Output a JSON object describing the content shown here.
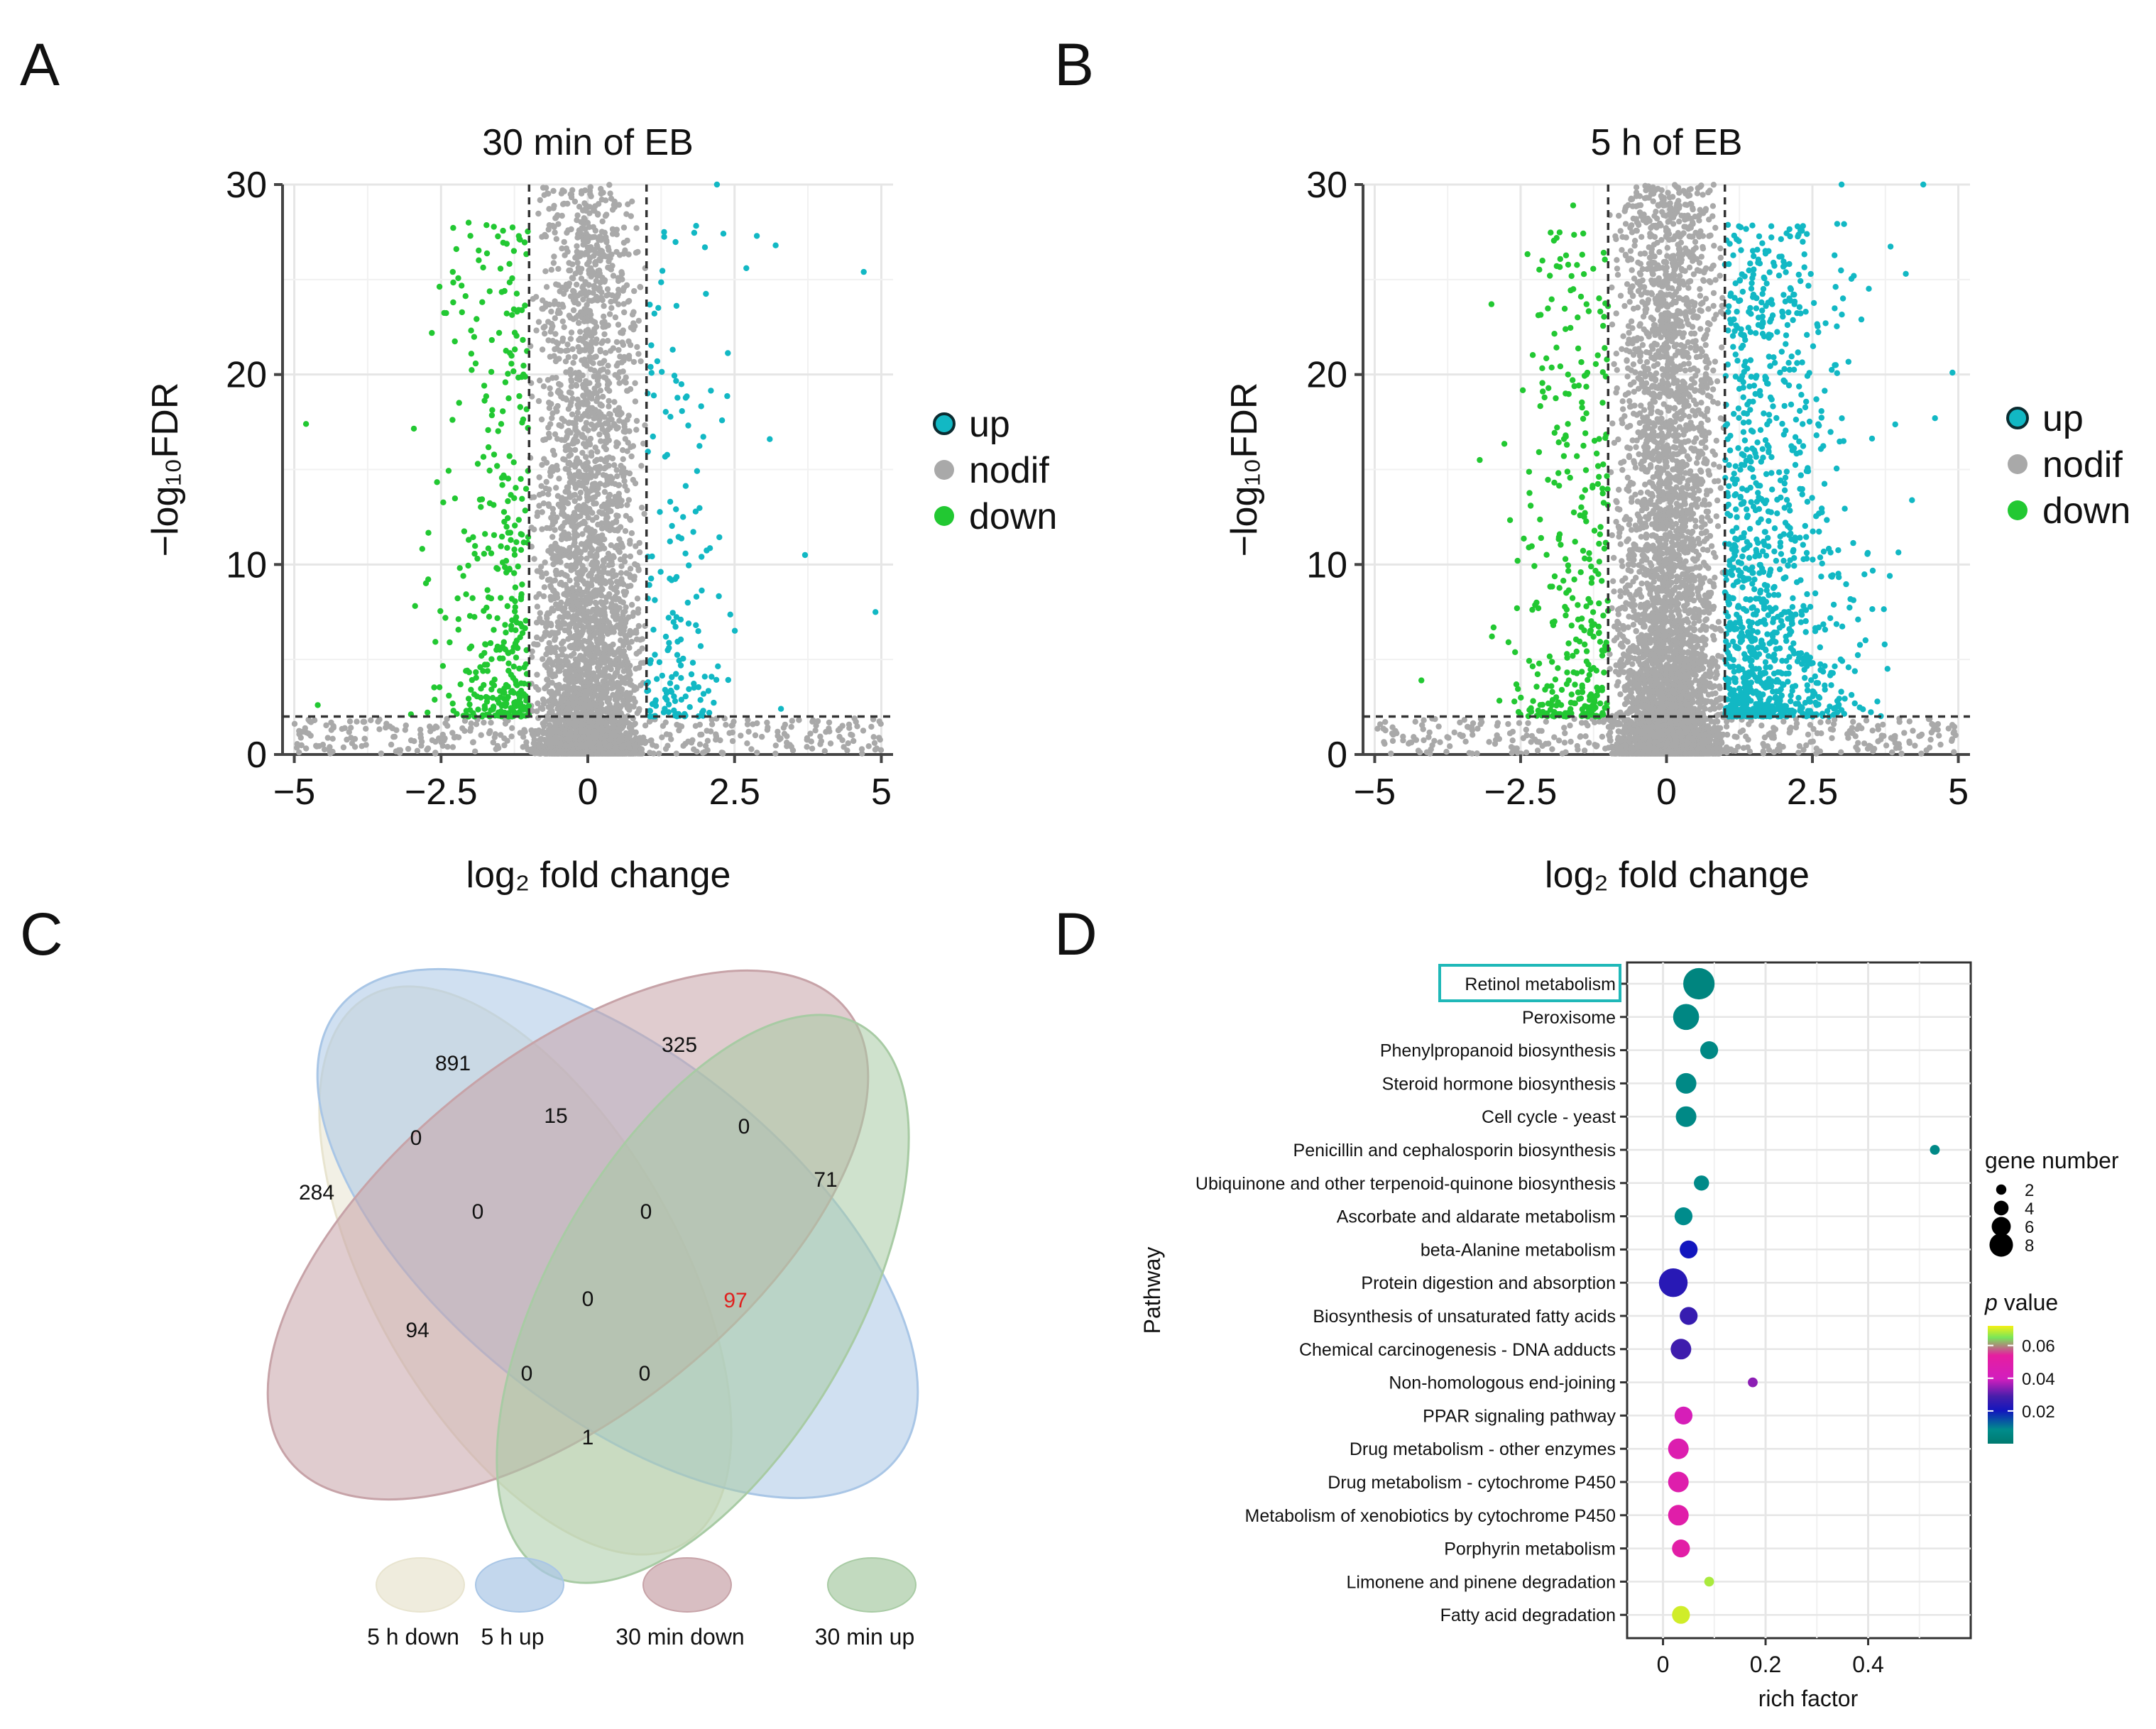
{
  "panels": {
    "a": {
      "letter": "A"
    },
    "b": {
      "letter": "B"
    },
    "c": {
      "letter": "C"
    },
    "d": {
      "letter": "D"
    }
  },
  "colors": {
    "up": "#12b8c4",
    "nodif": "#a9a9a9",
    "down": "#22c832",
    "grid": "#e6e6e6",
    "highlight_box": "#1fb8b8",
    "venn_5h_down": "#e8e4cf",
    "venn_5h_up": "#a9c6e6",
    "venn_30min_down": "#c7a3a8",
    "venn_30min_up": "#a8cba4",
    "venn_number_highlight": "#e0201e"
  },
  "chart_data": [
    {
      "id": "volcano-a",
      "type": "scatter",
      "title": "30 min of EB",
      "xlabel": "log₂ fold change",
      "ylabel": "−log₁₀FDR",
      "xlim": [
        -5.2,
        5.2
      ],
      "ylim": [
        0,
        30
      ],
      "xticks": [
        "−5",
        "−2.5",
        "0",
        "2.5",
        "5"
      ],
      "xtick_values": [
        -5,
        -2.5,
        0,
        2.5,
        5
      ],
      "yticks": [
        "0",
        "10",
        "20",
        "30"
      ],
      "ytick_values": [
        0,
        10,
        20,
        30
      ],
      "thresholds": {
        "x": [
          -1,
          1
        ],
        "y": 2
      },
      "legend": [
        "up",
        "nodif",
        "down"
      ],
      "series": [
        {
          "name": "up",
          "approx_count": 170,
          "x_range": [
            1,
            4.8
          ],
          "notable_points": [
            [
              2.2,
              30
            ],
            [
              1.3,
              27.5
            ],
            [
              3.2,
              26.8
            ],
            [
              4.7,
              25.4
            ],
            [
              2.7,
              25.6
            ],
            [
              4.9,
              7.5
            ],
            [
              3.1,
              16.6
            ],
            [
              3.7,
              10.5
            ]
          ]
        },
        {
          "name": "nodif",
          "approx_count": 3500,
          "x_range": [
            -1,
            1
          ]
        },
        {
          "name": "down",
          "approx_count": 390,
          "x_range": [
            -4.8,
            -1
          ],
          "notable_points": [
            [
              -4.8,
              17.4
            ],
            [
              -2.0,
              27.3
            ],
            [
              -2.3,
              25.4
            ],
            [
              -4.6,
              2.6
            ]
          ]
        }
      ]
    },
    {
      "id": "volcano-b",
      "type": "scatter",
      "title": "5 h of EB",
      "xlabel": "log₂ fold change",
      "ylabel": "−log₁₀FDR",
      "xlim": [
        -5.2,
        5.2
      ],
      "ylim": [
        0,
        30
      ],
      "xticks": [
        "−5",
        "−2.5",
        "0",
        "2.5",
        "5"
      ],
      "xtick_values": [
        -5,
        -2.5,
        0,
        2.5,
        5
      ],
      "yticks": [
        "0",
        "10",
        "20",
        "30"
      ],
      "ytick_values": [
        0,
        10,
        20,
        30
      ],
      "thresholds": {
        "x": [
          -1,
          1
        ],
        "y": 2
      },
      "legend": [
        "up",
        "nodif",
        "down"
      ],
      "series": [
        {
          "name": "up",
          "approx_count": 1150,
          "x_range": [
            1,
            5
          ],
          "notable_points": [
            [
              4.4,
              30
            ],
            [
              3.0,
              30
            ],
            [
              4.1,
              25.3
            ],
            [
              4.9,
              20.1
            ],
            [
              4.6,
              17.7
            ],
            [
              2.9,
              20.5
            ]
          ]
        },
        {
          "name": "nodif",
          "approx_count": 4500,
          "x_range": [
            -1,
            1
          ]
        },
        {
          "name": "down",
          "approx_count": 360,
          "x_range": [
            -4.5,
            -1
          ],
          "notable_points": [
            [
              -1.6,
              28.9
            ],
            [
              -3.0,
              23.7
            ],
            [
              -3.2,
              15.5
            ],
            [
              -4.2,
              3.9
            ]
          ]
        }
      ]
    },
    {
      "id": "pathway-d",
      "type": "scatter",
      "xlabel": "rich factor",
      "ylabel": "Pathway",
      "xlim": [
        -0.07,
        0.6
      ],
      "xticks": [
        "0",
        "0.2",
        "0.4"
      ],
      "xtick_values": [
        0,
        0.2,
        0.4
      ],
      "size_legend_title": "gene number",
      "size_legend": [
        "2",
        "4",
        "6",
        "8"
      ],
      "color_legend_title_italic": "p",
      "color_legend_title_rest": " value",
      "color_legend_ticks": [
        "0.06",
        "0.04",
        "0.02"
      ],
      "color_legend_tick_values": [
        0.06,
        0.04,
        0.02
      ],
      "pathways": [
        {
          "name": "Retinol metabolism",
          "rich_factor": 0.07,
          "gene_number": 9,
          "p_value": 0.006,
          "highlighted": true
        },
        {
          "name": "Peroxisome",
          "rich_factor": 0.045,
          "gene_number": 7,
          "p_value": 0.008
        },
        {
          "name": "Phenylpropanoid biosynthesis",
          "rich_factor": 0.09,
          "gene_number": 4,
          "p_value": 0.009
        },
        {
          "name": "Steroid hormone biosynthesis",
          "rich_factor": 0.045,
          "gene_number": 5,
          "p_value": 0.01
        },
        {
          "name": "Cell cycle - yeast",
          "rich_factor": 0.045,
          "gene_number": 5,
          "p_value": 0.01
        },
        {
          "name": "Penicillin and cephalosporin biosynthesis",
          "rich_factor": 0.53,
          "gene_number": 1,
          "p_value": 0.011
        },
        {
          "name": "Ubiquinone and other terpenoid-quinone biosynthesis",
          "rich_factor": 0.075,
          "gene_number": 3,
          "p_value": 0.012
        },
        {
          "name": "Ascorbate and aldarate metabolism",
          "rich_factor": 0.04,
          "gene_number": 4,
          "p_value": 0.014
        },
        {
          "name": "beta-Alanine metabolism",
          "rich_factor": 0.05,
          "gene_number": 4,
          "p_value": 0.025
        },
        {
          "name": "Protein digestion and absorption",
          "rich_factor": 0.02,
          "gene_number": 8,
          "p_value": 0.028
        },
        {
          "name": "Biosynthesis of unsaturated fatty acids",
          "rich_factor": 0.05,
          "gene_number": 4,
          "p_value": 0.03
        },
        {
          "name": "Chemical carcinogenesis - DNA adducts",
          "rich_factor": 0.035,
          "gene_number": 5,
          "p_value": 0.031
        },
        {
          "name": "Non-homologous end-joining",
          "rich_factor": 0.175,
          "gene_number": 1,
          "p_value": 0.036
        },
        {
          "name": "PPAR signaling pathway",
          "rich_factor": 0.04,
          "gene_number": 4,
          "p_value": 0.042
        },
        {
          "name": "Drug metabolism - other enzymes",
          "rich_factor": 0.03,
          "gene_number": 5,
          "p_value": 0.045
        },
        {
          "name": "Drug metabolism - cytochrome P450",
          "rich_factor": 0.03,
          "gene_number": 5,
          "p_value": 0.046
        },
        {
          "name": "Metabolism of xenobiotics by cytochrome P450",
          "rich_factor": 0.03,
          "gene_number": 5,
          "p_value": 0.047
        },
        {
          "name": "Porphyrin metabolism",
          "rich_factor": 0.035,
          "gene_number": 4,
          "p_value": 0.048
        },
        {
          "name": "Limonene and pinene degradation",
          "rich_factor": 0.09,
          "gene_number": 1,
          "p_value": 0.066
        },
        {
          "name": "Fatty acid degradation",
          "rich_factor": 0.035,
          "gene_number": 4,
          "p_value": 0.069
        }
      ]
    }
  ],
  "venn": {
    "sets": [
      "5 h down",
      "5 h up",
      "30 min down",
      "30 min up"
    ],
    "regions": [
      {
        "sets": [
          "5 h up"
        ],
        "value": "891"
      },
      {
        "sets": [
          "30 min down"
        ],
        "value": "325"
      },
      {
        "sets": [
          "5 h down"
        ],
        "value": "284"
      },
      {
        "sets": [
          "30 min up"
        ],
        "value": "71"
      },
      {
        "sets": [
          "5 h up",
          "30 min down"
        ],
        "value": "15"
      },
      {
        "sets": [
          "5 h down",
          "5 h up"
        ],
        "value": "0"
      },
      {
        "sets": [
          "30 min down",
          "30 min up"
        ],
        "value": "0"
      },
      {
        "sets": [
          "5 h down",
          "5 h up",
          "30 min down"
        ],
        "value": "0"
      },
      {
        "sets": [
          "5 h up",
          "30 min down",
          "30 min up"
        ],
        "value": "0"
      },
      {
        "sets": [
          "5 h down",
          "30 min down"
        ],
        "value": "94"
      },
      {
        "sets": [
          "all four"
        ],
        "value": "0"
      },
      {
        "sets": [
          "5 h up",
          "30 min up"
        ],
        "value": "97",
        "highlighted": true
      },
      {
        "sets": [
          "5 h down",
          "30 min down",
          "30 min up"
        ],
        "value": "0"
      },
      {
        "sets": [
          "5 h down",
          "5 h up",
          "30 min up"
        ],
        "value": "0"
      },
      {
        "sets": [
          "5 h down",
          "30 min up"
        ],
        "value": "1"
      }
    ]
  }
}
